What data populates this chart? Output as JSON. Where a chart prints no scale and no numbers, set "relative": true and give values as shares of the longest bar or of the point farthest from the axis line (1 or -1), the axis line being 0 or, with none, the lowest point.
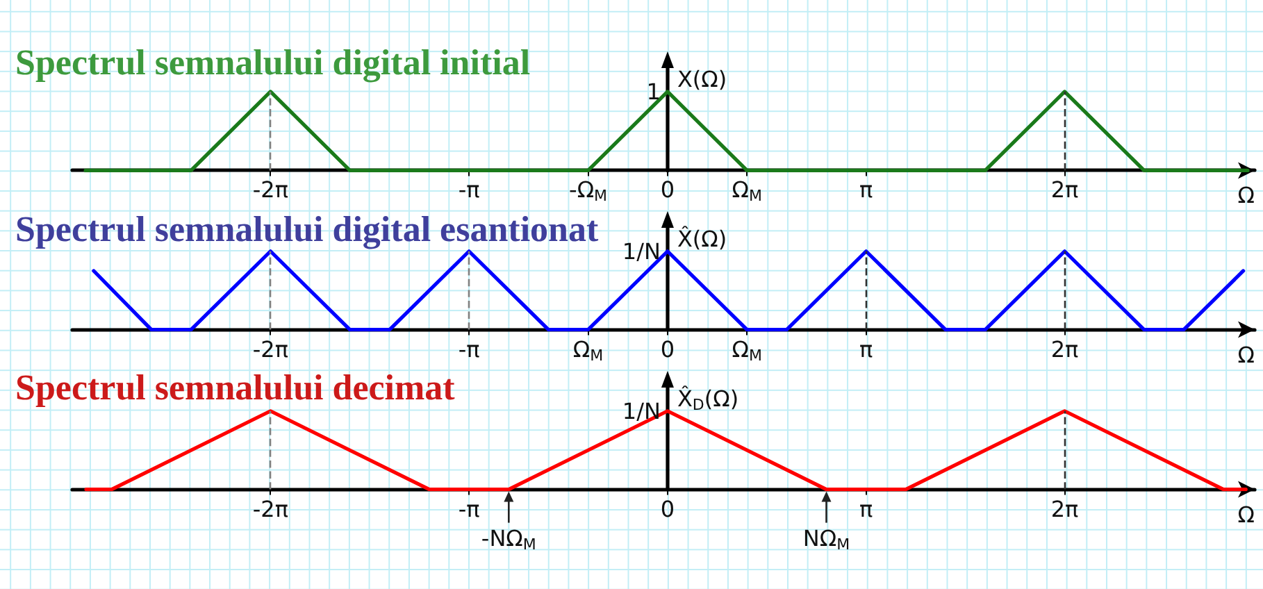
{
  "chart_data": [
    {
      "type": "line",
      "title": "Spectrul semnalului digital initial",
      "xlabel": "Ω",
      "ylabel": "X(Ω)",
      "relative": true,
      "color": "#1a7a1a",
      "x": [
        -9.21,
        -7.54,
        -6.283,
        -5.027,
        -1.257,
        0,
        1.257,
        5.027,
        6.283,
        7.54,
        9.18
      ],
      "values": [
        0,
        0,
        1,
        0,
        0,
        1,
        0,
        0,
        1,
        0,
        0
      ],
      "xlim": [
        -9.42,
        9.29
      ],
      "xticks": [
        {
          "value": -6.283,
          "label": "-2π"
        },
        {
          "value": -3.142,
          "label": "-π"
        },
        {
          "value": -1.257,
          "label": "-Ω$_{M}$"
        },
        {
          "value": 0,
          "label": "0"
        },
        {
          "value": 1.257,
          "label": "Ω$_{M}$"
        },
        {
          "value": 3.142,
          "label": "π"
        },
        {
          "value": 6.283,
          "label": "2π"
        }
      ],
      "ref_lines": [
        {
          "axis": "x",
          "value": -6.283,
          "line_style": "dashed",
          "color": "#808080"
        },
        {
          "axis": "x",
          "value": 6.283,
          "line_style": "dashed",
          "color": "#303030"
        }
      ],
      "annotations": [
        {
          "text": "1",
          "x": 0,
          "y": 1
        }
      ]
    },
    {
      "type": "line",
      "title": "Spectrul semnalului digital esantionat",
      "xlabel": "Ω",
      "ylabel": "X̂(Ω)",
      "relative": true,
      "color": "#0000ff",
      "x": [
        -9.08,
        -8.168,
        -7.54,
        -6.283,
        -5.027,
        -4.398,
        -3.142,
        -1.885,
        -1.257,
        0,
        1.257,
        1.885,
        3.142,
        4.398,
        5.027,
        6.283,
        7.54,
        8.168,
        9.11
      ],
      "values": [
        0.75,
        0,
        0,
        1,
        0,
        0,
        1,
        0,
        0,
        1,
        0,
        0,
        1,
        0,
        0,
        1,
        0,
        0,
        0.75
      ],
      "xlim": [
        -9.42,
        9.29
      ],
      "xticks": [
        {
          "value": -6.283,
          "label": "-2π"
        },
        {
          "value": -3.142,
          "label": "-π"
        },
        {
          "value": -1.257,
          "label": "Ω$_{M}$"
        },
        {
          "value": 0,
          "label": "0"
        },
        {
          "value": 1.257,
          "label": "Ω$_{M}$"
        },
        {
          "value": 3.142,
          "label": "π"
        },
        {
          "value": 6.283,
          "label": "2π"
        }
      ],
      "ref_lines": [
        {
          "axis": "x",
          "value": -6.283,
          "line_style": "dashed",
          "color": "#808080"
        },
        {
          "axis": "x",
          "value": -3.142,
          "line_style": "dashed",
          "color": "#808080"
        },
        {
          "axis": "x",
          "value": 3.142,
          "line_style": "dashed",
          "color": "#303030"
        },
        {
          "axis": "x",
          "value": 6.283,
          "line_style": "dashed",
          "color": "#303030"
        }
      ],
      "annotations": [
        {
          "text": "1/N",
          "x": 0,
          "y": 1
        }
      ]
    },
    {
      "type": "line",
      "title": "Spectrul semnalului decimat",
      "xlabel": "Ω",
      "ylabel": "X̂$_{D}$(Ω)",
      "relative": true,
      "color": "#ff0000",
      "x": [
        -9.2,
        -8.796,
        -6.283,
        -3.77,
        -2.513,
        0,
        2.513,
        3.77,
        6.283,
        8.796,
        9.15
      ],
      "values": [
        0,
        0,
        1,
        0,
        0,
        1,
        0,
        0,
        1,
        0,
        0
      ],
      "xlim": [
        -9.42,
        9.29
      ],
      "xticks": [
        {
          "value": -6.283,
          "label": "-2π"
        },
        {
          "value": -3.142,
          "label": "-π"
        },
        {
          "value": 0,
          "label": "0"
        },
        {
          "value": 3.142,
          "label": "π"
        },
        {
          "value": 6.283,
          "label": "2π"
        }
      ],
      "ref_lines": [
        {
          "axis": "x",
          "value": -6.283,
          "line_style": "dashed",
          "color": "#808080"
        },
        {
          "axis": "x",
          "value": 6.283,
          "line_style": "dashed",
          "color": "#303030"
        }
      ],
      "annotations": [
        {
          "text": "1/N",
          "x": 0,
          "y": 1
        },
        {
          "text": "-NΩ$_{M}$",
          "x": -2.513,
          "y": 0
        },
        {
          "text": "NΩ$_{M}$",
          "x": 2.513,
          "y": 0
        }
      ]
    }
  ]
}
